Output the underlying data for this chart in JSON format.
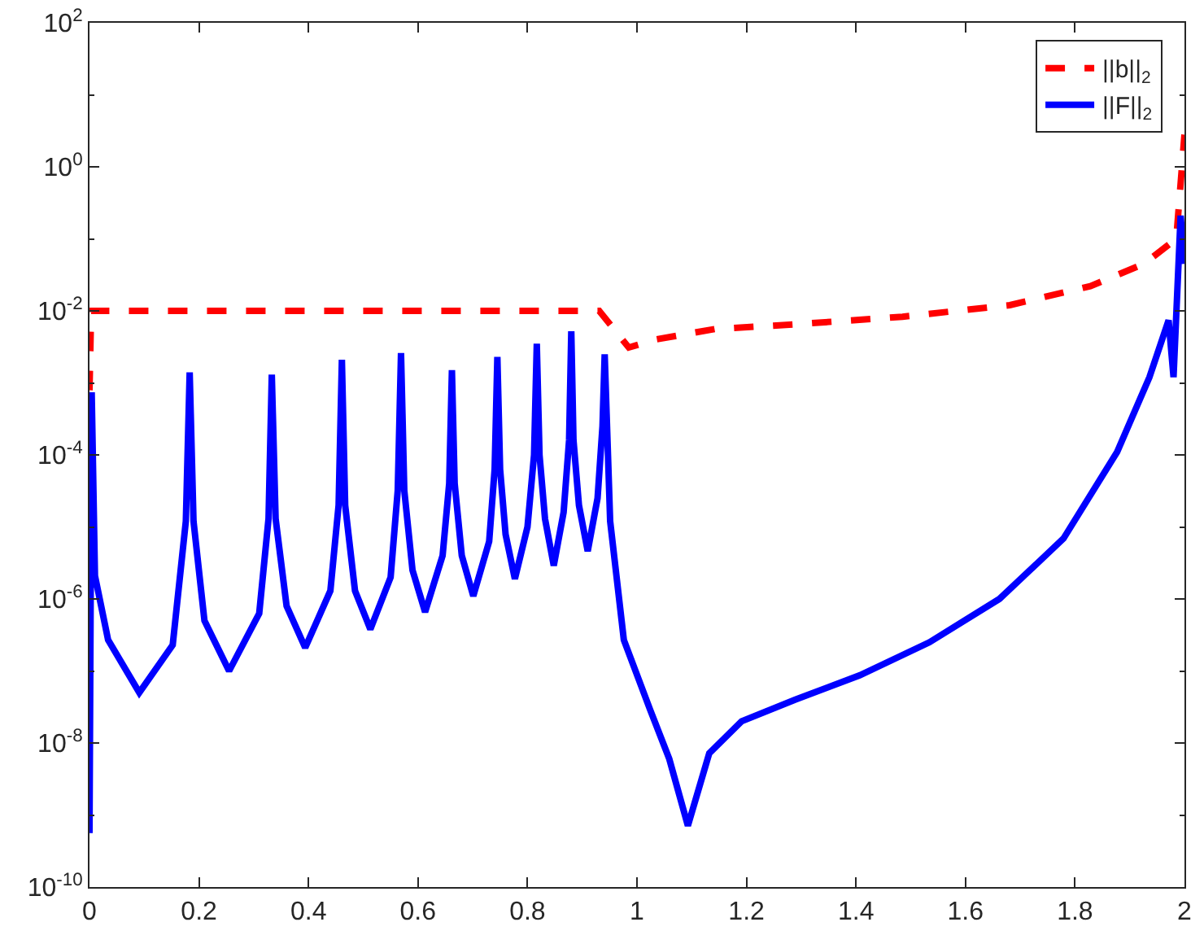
{
  "chart_data": {
    "type": "line",
    "log": "y",
    "legend": "top right",
    "marker": "none",
    "xlim": [
      0,
      2
    ],
    "xticks": [
      0,
      0.2,
      0.4,
      0.6,
      0.8,
      1,
      1.2,
      1.4,
      1.6,
      1.8,
      2
    ],
    "ylim": [
      1e-10,
      100
    ],
    "yticks": [
      {
        "value": 1e-10,
        "label": "10$^{-10}$"
      },
      {
        "value": 1e-08,
        "label": "10$^{-8}$"
      },
      {
        "value": 1e-06,
        "label": "10$^{-6}$"
      },
      {
        "value": 0.0001,
        "label": "10$^{-4}$"
      },
      {
        "value": 0.01,
        "label": "10$^{-2}$"
      },
      {
        "value": 1,
        "label": "10$^{0}$"
      },
      {
        "value": 100,
        "label": "10$^{2}$"
      }
    ],
    "series": [
      {
        "name": "||b||$_{2}$",
        "color": "#ff0000",
        "line_style": "dashed",
        "x": [
          0,
          0.003,
          0.931,
          0.985,
          1.034,
          1.142,
          1.289,
          1.485,
          1.681,
          1.828,
          1.926,
          1.985,
          2.0
        ],
        "values": [
          0.00079,
          0.01,
          0.01,
          0.0031,
          0.004,
          0.0056,
          0.0065,
          0.0083,
          0.012,
          0.022,
          0.045,
          0.1,
          2.8
        ]
      },
      {
        "name": "||F||$_{2}$",
        "color": "#0000ff",
        "line_style": "solid",
        "x": [
          0,
          0.004,
          0.01,
          0.034,
          0.091,
          0.152,
          0.176,
          0.183,
          0.19,
          0.21,
          0.255,
          0.31,
          0.327,
          0.333,
          0.34,
          0.36,
          0.394,
          0.44,
          0.455,
          0.461,
          0.467,
          0.485,
          0.513,
          0.55,
          0.563,
          0.569,
          0.575,
          0.59,
          0.613,
          0.645,
          0.657,
          0.662,
          0.667,
          0.68,
          0.701,
          0.73,
          0.74,
          0.745,
          0.75,
          0.76,
          0.777,
          0.8,
          0.812,
          0.817,
          0.822,
          0.832,
          0.848,
          0.866,
          0.876,
          0.88,
          0.884,
          0.894,
          0.91,
          0.928,
          0.937,
          0.941,
          0.951,
          0.976,
          1.024,
          1.059,
          1.093,
          1.132,
          1.191,
          1.289,
          1.407,
          1.534,
          1.662,
          1.779,
          1.877,
          1.936,
          1.971,
          1.98,
          1.993,
          2.0
        ],
        "values": [
          5.6e-10,
          0.00074,
          2.1e-06,
          2.7e-07,
          5e-08,
          2.3e-07,
          1.2e-05,
          0.0014,
          1.2e-05,
          5e-07,
          1e-07,
          6.3e-07,
          1.3e-05,
          0.0013,
          1.3e-05,
          8e-07,
          2.1e-07,
          1.3e-06,
          2e-05,
          0.0021,
          2e-05,
          1.3e-06,
          3.8e-07,
          2e-06,
          3.2e-05,
          0.0026,
          3.2e-05,
          2.5e-06,
          6.6e-07,
          4e-06,
          4e-05,
          0.0015,
          4e-05,
          4e-06,
          1.1e-06,
          6.3e-06,
          6.3e-05,
          0.0023,
          6.3e-05,
          7.9e-06,
          1.9e-06,
          1e-05,
          0.0001,
          0.0035,
          0.0001,
          1.3e-05,
          2.9e-06,
          1.6e-05,
          0.00016,
          0.0052,
          0.00016,
          2e-05,
          4.6e-06,
          2.5e-05,
          0.00025,
          0.0025,
          1.2e-05,
          2.7e-07,
          2.9e-08,
          6e-09,
          7.1e-10,
          7.2e-09,
          2e-08,
          4e-08,
          8.7e-08,
          2.5e-07,
          1e-06,
          6.9e-06,
          0.00011,
          0.0012,
          0.0074,
          0.0012,
          0.21,
          0.045
        ]
      }
    ]
  }
}
